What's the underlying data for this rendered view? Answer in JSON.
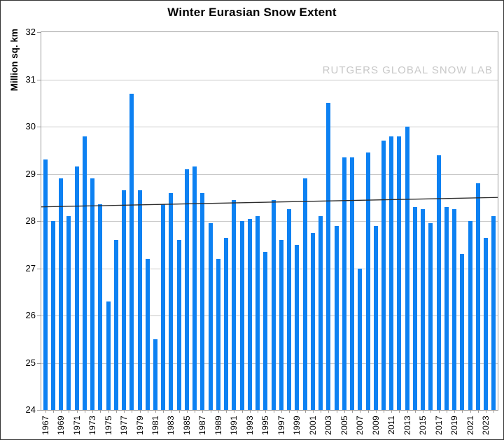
{
  "chart_data": {
    "type": "bar",
    "title": "Winter Eurasian Snow Extent",
    "ylabel": "Million sq. km",
    "watermark": "RUTGERS GLOBAL SNOW LAB",
    "ylim": [
      24,
      32
    ],
    "yticks": [
      24,
      25,
      26,
      27,
      28,
      29,
      30,
      31,
      32
    ],
    "grid": true,
    "legend": false,
    "years": [
      1967,
      1968,
      1969,
      1970,
      1971,
      1972,
      1973,
      1974,
      1975,
      1976,
      1977,
      1978,
      1979,
      1980,
      1981,
      1982,
      1983,
      1984,
      1985,
      1986,
      1987,
      1988,
      1989,
      1990,
      1991,
      1992,
      1993,
      1994,
      1995,
      1996,
      1997,
      1998,
      1999,
      2000,
      2001,
      2002,
      2003,
      2004,
      2005,
      2006,
      2007,
      2008,
      2009,
      2010,
      2011,
      2012,
      2013,
      2014,
      2015,
      2016,
      2017,
      2018,
      2019,
      2020,
      2021,
      2022,
      2023,
      2024
    ],
    "values": [
      29.3,
      28.0,
      28.9,
      28.1,
      29.15,
      29.8,
      28.9,
      28.35,
      26.3,
      27.6,
      28.65,
      30.7,
      28.65,
      27.2,
      25.5,
      28.35,
      28.6,
      27.6,
      29.1,
      29.15,
      28.6,
      27.95,
      27.2,
      27.65,
      28.45,
      28.0,
      28.05,
      28.1,
      27.35,
      28.45,
      27.6,
      28.25,
      27.5,
      28.9,
      27.75,
      28.1,
      30.5,
      27.9,
      29.35,
      29.35,
      27.0,
      29.45,
      27.9,
      29.7,
      29.8,
      29.8,
      30.0,
      28.3,
      28.25,
      27.95,
      29.4,
      28.3,
      28.25,
      27.3,
      28.0,
      28.8,
      27.65,
      28.1
    ],
    "xtick_labels": [
      "1967",
      "1969",
      "1971",
      "1973",
      "1975",
      "1977",
      "1979",
      "1981",
      "1983",
      "1985",
      "1987",
      "1989",
      "1991",
      "1993",
      "1995",
      "1997",
      "1999",
      "2001",
      "2003",
      "2005",
      "2007",
      "2009",
      "2011",
      "2013",
      "2015",
      "2017",
      "2019",
      "2021",
      "2023"
    ],
    "trendline": {
      "start_value": 28.3,
      "end_value": 28.5
    },
    "colors": {
      "bar": "#0D81F2",
      "grid": "#C9C9C9",
      "axis": "#999999",
      "trend": "#2B2B2B",
      "watermark": "#C8C8C8"
    }
  }
}
